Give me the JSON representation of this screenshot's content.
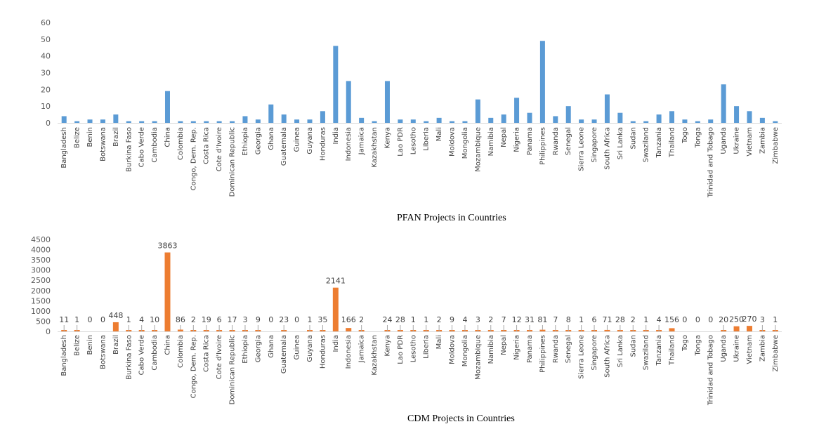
{
  "countries": [
    "Bangladesh",
    "Belize",
    "Benin",
    "Botswana",
    "Brazil",
    "Burkina Faso",
    "Cabo Verde",
    "Cambodia",
    "China",
    "Colombia",
    "Congo, Dem. Rep.",
    "Costa Rica",
    "Cote d'Ivoire",
    "Dominican Republic",
    "Ethiopia",
    "Georgia",
    "Ghana",
    "Guatemala",
    "Guinea",
    "Guyana",
    "Honduras",
    "India",
    "Indonesia",
    "Jamaica",
    "Kazakhstan",
    "Kenya",
    "Lao PDR",
    "Lesotho",
    "Liberia",
    "Mali",
    "Moldova",
    "Mongolia",
    "Mozambique",
    "Namibia",
    "Nepal",
    "Nigeria",
    "Panama",
    "Philippines",
    "Rwanda",
    "Senegal",
    "Sierra Leone",
    "Singapore",
    "South Africa",
    "Sri Lanka",
    "Sudan",
    "Swaziland",
    "Tanzania",
    "Thailand",
    "Togo",
    "Tonga",
    "Trinidad and Tobago",
    "Uganda",
    "Ukraine",
    "Vietnam",
    "Zambia",
    "Zimbabwe"
  ],
  "chart_data": [
    {
      "type": "bar",
      "title": "PFAN Projects in  Countries",
      "color": "#5b9bd5",
      "ylim": [
        0,
        60
      ],
      "yticks": [
        0,
        10,
        20,
        30,
        40,
        50,
        60
      ],
      "values": [
        4,
        1,
        2,
        2,
        5,
        1,
        1,
        1,
        19,
        1,
        1,
        1,
        1,
        1,
        4,
        2,
        11,
        5,
        2,
        2,
        7,
        46,
        25,
        3,
        1,
        25,
        2,
        2,
        1,
        3,
        1,
        1,
        14,
        3,
        5,
        15,
        6,
        49,
        4,
        10,
        2,
        2,
        17,
        6,
        1,
        1,
        5,
        7,
        2,
        1,
        2,
        23,
        10,
        7,
        3,
        1
      ],
      "xlabel": "",
      "ylabel": "",
      "grid": false,
      "legend": "none"
    },
    {
      "type": "bar",
      "title": "CDM Projects in  Countries",
      "color": "#ed7d31",
      "ylim": [
        0,
        4500
      ],
      "yticks": [
        0,
        500,
        1000,
        1500,
        2000,
        2500,
        3000,
        3500,
        4000,
        4500
      ],
      "values": [
        11,
        1,
        0,
        0,
        448,
        1,
        4,
        10,
        3863,
        86,
        2,
        19,
        6,
        17,
        3,
        9,
        0,
        23,
        0,
        1,
        35,
        2141,
        166,
        2,
        null,
        24,
        28,
        1,
        1,
        2,
        9,
        4,
        3,
        2,
        7,
        12,
        31,
        81,
        7,
        8,
        1,
        6,
        71,
        28,
        2,
        1,
        4,
        156,
        0,
        0,
        0,
        20,
        250,
        270,
        3,
        1
      ],
      "labels": [
        "11",
        "1",
        "0",
        "0",
        "448",
        "1",
        "4",
        "10",
        "3863",
        "86",
        "2",
        "19",
        "6",
        "17",
        "3",
        "9",
        "0",
        "23",
        "0",
        "1",
        "35",
        "2141",
        "166",
        "2",
        "",
        "24",
        "28",
        "1",
        "1",
        "2",
        "9",
        "4",
        "3",
        "2",
        "7",
        "12",
        "31",
        "81",
        "7",
        "8",
        "1",
        "6",
        "71",
        "28",
        "2",
        "1",
        "4",
        "156",
        "0",
        "0",
        "0",
        "20",
        "250",
        "270",
        "3",
        "1"
      ],
      "xlabel": "",
      "ylabel": "",
      "grid": false,
      "legend": "none"
    }
  ]
}
